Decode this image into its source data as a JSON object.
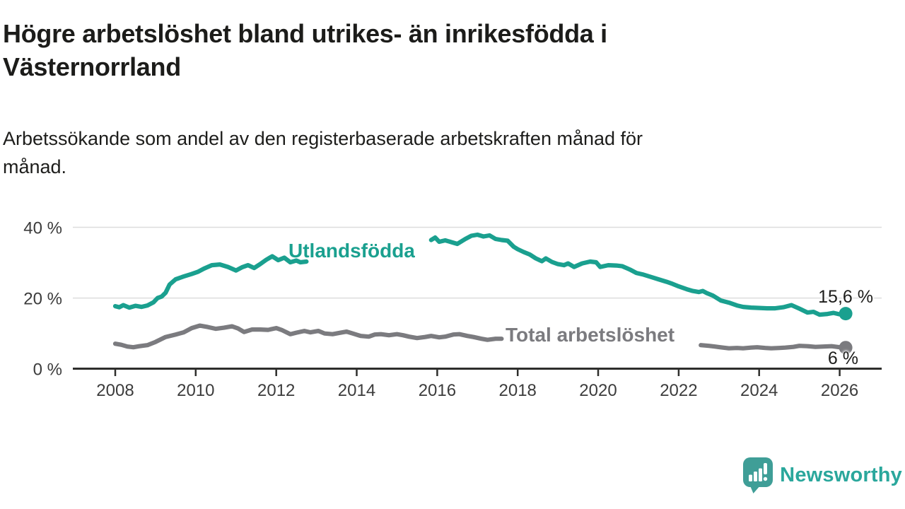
{
  "header": {
    "title": "Högre arbetslöshet bland utrikes- än inrikesfödda i\nVästernorrland",
    "subtitle": "Arbetssökande som andel av den registerbaserade arbetskraften månad för\nmånad."
  },
  "chart_data": {
    "type": "line",
    "title": "Högre arbetslöshet bland utrikes- än inrikesfödda i Västernorrland",
    "subtitle": "Arbetssökande som andel av den registerbaserade arbetskraften månad för månad.",
    "x_unit": "year",
    "y_unit": "%",
    "xlim": [
      2006.95,
      2027.0
    ],
    "ylim": [
      0,
      42
    ],
    "grid": "horizontal-only",
    "legend_position": "inline-labels",
    "x_ticks": [
      2008,
      2010,
      2012,
      2014,
      2016,
      2018,
      2020,
      2022,
      2024,
      2026
    ],
    "y_ticks": [
      {
        "value": 0,
        "label": "0 %"
      },
      {
        "value": 20,
        "label": "20 %"
      },
      {
        "value": 40,
        "label": "40 %"
      }
    ],
    "axis_color": "#2e2e2c",
    "grid_color": "#dcdcdc",
    "series": [
      {
        "name": "Utlandsfödda",
        "color": "#1aa08f",
        "end_label": "15,6 %",
        "end_value": 15.6,
        "segments": [
          [
            [
              2008.0,
              17.7
            ],
            [
              2008.1,
              17.4
            ],
            [
              2008.2,
              18.0
            ],
            [
              2008.35,
              17.3
            ],
            [
              2008.5,
              17.8
            ],
            [
              2008.65,
              17.5
            ],
            [
              2008.8,
              17.9
            ],
            [
              2008.95,
              18.8
            ],
            [
              2009.05,
              20.0
            ],
            [
              2009.15,
              20.4
            ],
            [
              2009.25,
              21.5
            ],
            [
              2009.35,
              23.8
            ],
            [
              2009.5,
              25.3
            ],
            [
              2009.7,
              26.1
            ],
            [
              2009.9,
              26.8
            ],
            [
              2010.05,
              27.4
            ],
            [
              2010.2,
              28.3
            ],
            [
              2010.4,
              29.3
            ],
            [
              2010.6,
              29.5
            ],
            [
              2010.8,
              28.8
            ],
            [
              2011.0,
              27.8
            ],
            [
              2011.15,
              28.7
            ],
            [
              2011.3,
              29.3
            ],
            [
              2011.45,
              28.5
            ],
            [
              2011.6,
              29.6
            ],
            [
              2011.75,
              30.8
            ],
            [
              2011.9,
              31.8
            ],
            [
              2012.05,
              30.7
            ],
            [
              2012.2,
              31.4
            ],
            [
              2012.35,
              30.1
            ],
            [
              2012.5,
              30.6
            ],
            [
              2012.6,
              30.1
            ],
            [
              2012.75,
              30.3
            ]
          ],
          [
            [
              2015.85,
              36.4
            ],
            [
              2015.95,
              37.1
            ],
            [
              2016.05,
              35.9
            ],
            [
              2016.2,
              36.3
            ],
            [
              2016.35,
              35.8
            ],
            [
              2016.5,
              35.3
            ],
            [
              2016.7,
              36.7
            ],
            [
              2016.85,
              37.6
            ],
            [
              2017.0,
              37.9
            ],
            [
              2017.15,
              37.4
            ],
            [
              2017.3,
              37.7
            ],
            [
              2017.45,
              36.7
            ],
            [
              2017.6,
              36.4
            ],
            [
              2017.75,
              36.2
            ],
            [
              2017.9,
              34.5
            ],
            [
              2018.0,
              33.8
            ],
            [
              2018.15,
              33.0
            ],
            [
              2018.3,
              32.3
            ],
            [
              2018.45,
              31.2
            ],
            [
              2018.6,
              30.4
            ],
            [
              2018.7,
              31.2
            ],
            [
              2018.85,
              30.2
            ],
            [
              2019.0,
              29.6
            ],
            [
              2019.15,
              29.3
            ],
            [
              2019.25,
              29.8
            ],
            [
              2019.4,
              28.8
            ],
            [
              2019.6,
              29.8
            ],
            [
              2019.8,
              30.3
            ],
            [
              2019.95,
              30.1
            ],
            [
              2020.05,
              28.8
            ],
            [
              2020.25,
              29.3
            ],
            [
              2020.45,
              29.2
            ],
            [
              2020.6,
              29.0
            ],
            [
              2020.8,
              28.0
            ],
            [
              2020.95,
              27.1
            ],
            [
              2021.1,
              26.7
            ],
            [
              2021.3,
              26.0
            ],
            [
              2021.5,
              25.3
            ],
            [
              2021.7,
              24.6
            ],
            [
              2021.85,
              24.0
            ],
            [
              2022.0,
              23.3
            ],
            [
              2022.2,
              22.5
            ],
            [
              2022.35,
              22.0
            ],
            [
              2022.5,
              21.7
            ],
            [
              2022.6,
              22.0
            ],
            [
              2022.7,
              21.4
            ],
            [
              2022.85,
              20.7
            ],
            [
              2023.05,
              19.3
            ],
            [
              2023.25,
              18.7
            ],
            [
              2023.45,
              17.9
            ],
            [
              2023.6,
              17.5
            ],
            [
              2023.8,
              17.3
            ],
            [
              2024.0,
              17.2
            ],
            [
              2024.2,
              17.1
            ],
            [
              2024.4,
              17.1
            ],
            [
              2024.6,
              17.4
            ],
            [
              2024.8,
              18.0
            ],
            [
              2025.0,
              17.0
            ],
            [
              2025.2,
              15.9
            ],
            [
              2025.35,
              16.1
            ],
            [
              2025.5,
              15.3
            ],
            [
              2025.7,
              15.5
            ],
            [
              2025.85,
              15.8
            ],
            [
              2026.0,
              15.4
            ],
            [
              2026.15,
              15.6
            ]
          ]
        ]
      },
      {
        "name": "Total arbetslöshet",
        "color": "#7b7b7f",
        "end_label": "6 %",
        "end_value": 6.0,
        "segments": [
          [
            [
              2008.0,
              7.1
            ],
            [
              2008.15,
              6.8
            ],
            [
              2008.3,
              6.3
            ],
            [
              2008.45,
              6.1
            ],
            [
              2008.6,
              6.4
            ],
            [
              2008.8,
              6.7
            ],
            [
              2009.0,
              7.6
            ],
            [
              2009.25,
              9.0
            ],
            [
              2009.5,
              9.7
            ],
            [
              2009.7,
              10.3
            ],
            [
              2009.9,
              11.5
            ],
            [
              2010.1,
              12.2
            ],
            [
              2010.3,
              11.8
            ],
            [
              2010.5,
              11.3
            ],
            [
              2010.7,
              11.6
            ],
            [
              2010.9,
              12.0
            ],
            [
              2011.05,
              11.4
            ],
            [
              2011.2,
              10.4
            ],
            [
              2011.4,
              11.1
            ],
            [
              2011.6,
              11.1
            ],
            [
              2011.8,
              11.0
            ],
            [
              2012.0,
              11.5
            ],
            [
              2012.15,
              10.9
            ],
            [
              2012.35,
              9.8
            ],
            [
              2012.5,
              10.2
            ],
            [
              2012.7,
              10.7
            ],
            [
              2012.85,
              10.3
            ],
            [
              2013.05,
              10.7
            ],
            [
              2013.2,
              10.0
            ],
            [
              2013.4,
              9.8
            ],
            [
              2013.6,
              10.2
            ],
            [
              2013.75,
              10.5
            ],
            [
              2013.9,
              10.0
            ],
            [
              2014.1,
              9.3
            ],
            [
              2014.3,
              9.1
            ],
            [
              2014.45,
              9.7
            ],
            [
              2014.6,
              9.8
            ],
            [
              2014.8,
              9.5
            ],
            [
              2015.0,
              9.8
            ],
            [
              2015.15,
              9.5
            ],
            [
              2015.3,
              9.1
            ],
            [
              2015.5,
              8.7
            ],
            [
              2015.7,
              9.0
            ],
            [
              2015.85,
              9.3
            ],
            [
              2016.05,
              8.9
            ],
            [
              2016.2,
              9.1
            ],
            [
              2016.4,
              9.7
            ],
            [
              2016.55,
              9.8
            ],
            [
              2016.75,
              9.3
            ],
            [
              2016.9,
              9.0
            ],
            [
              2017.1,
              8.5
            ],
            [
              2017.25,
              8.2
            ],
            [
              2017.45,
              8.5
            ],
            [
              2017.6,
              8.5
            ]
          ],
          [
            [
              2022.55,
              6.7
            ],
            [
              2022.75,
              6.5
            ],
            [
              2022.9,
              6.3
            ],
            [
              2023.1,
              6.0
            ],
            [
              2023.25,
              5.8
            ],
            [
              2023.45,
              5.9
            ],
            [
              2023.6,
              5.8
            ],
            [
              2023.8,
              6.0
            ],
            [
              2023.95,
              6.1
            ],
            [
              2024.15,
              5.9
            ],
            [
              2024.3,
              5.8
            ],
            [
              2024.5,
              5.9
            ],
            [
              2024.65,
              6.0
            ],
            [
              2024.85,
              6.2
            ],
            [
              2025.0,
              6.5
            ],
            [
              2025.2,
              6.4
            ],
            [
              2025.4,
              6.2
            ],
            [
              2025.6,
              6.3
            ],
            [
              2025.8,
              6.4
            ],
            [
              2026.0,
              6.1
            ],
            [
              2026.15,
              6.0
            ]
          ]
        ]
      }
    ]
  },
  "branding": {
    "name": "Newsworthy",
    "icon": "newsworthy-speech-bubble-bar-chart",
    "icon_color": "#3f9e97",
    "icon_glyph_color": "#ffffff",
    "wordmark_color": "#2aa79c"
  }
}
